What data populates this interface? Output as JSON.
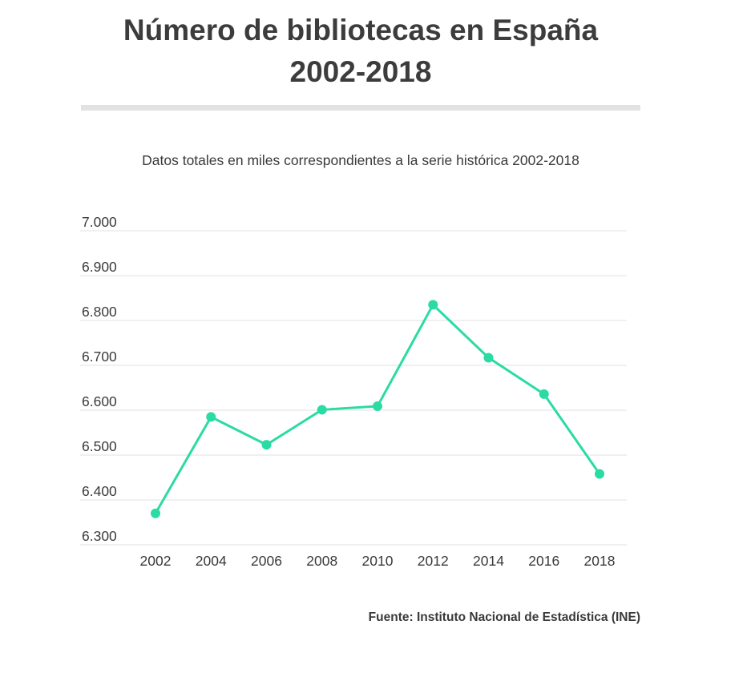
{
  "header": {
    "title_line1": "Número de bibliotecas en España",
    "title_line2": "2002-2018"
  },
  "chart_data": {
    "type": "line",
    "title": "Número de bibliotecas en España 2002-2018",
    "subtitle": "Datos totales en miles correspondientes a la serie histórica 2002-2018",
    "xlabel": "",
    "ylabel": "",
    "x": [
      "2002",
      "2004",
      "2006",
      "2008",
      "2010",
      "2012",
      "2014",
      "2016",
      "2018"
    ],
    "series": [
      {
        "name": "Bibliotecas",
        "values": [
          6370,
          6585,
          6523,
          6601,
          6609,
          6835,
          6717,
          6636,
          6458
        ]
      }
    ],
    "ylim": [
      6300,
      7000
    ],
    "yticks": [
      7000,
      6900,
      6800,
      6700,
      6600,
      6500,
      6400,
      6300
    ],
    "ytick_labels": [
      "7.000",
      "6.900",
      "6.800",
      "6.700",
      "6.600",
      "6.500",
      "6.400",
      "6.300"
    ],
    "grid": true,
    "line_color": "#2bdba4",
    "grid_color": "#e6e6e6"
  },
  "footer": {
    "source": "Fuente: Instituto Nacional de Estadística (INE)"
  }
}
